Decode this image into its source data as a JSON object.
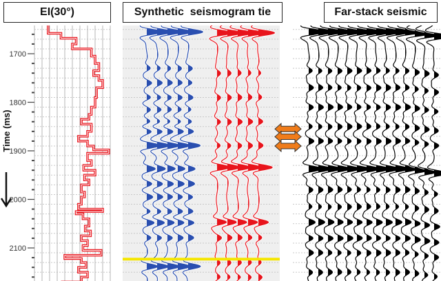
{
  "chart_data": {
    "type": "line",
    "panels": [
      {
        "title": "EI(30°)",
        "type": "step-log",
        "color": "#e8141c",
        "log": [
          [
            1650,
            0.18
          ],
          [
            1658,
            0.35
          ],
          [
            1668,
            0.55
          ],
          [
            1680,
            0.5
          ],
          [
            1690,
            0.75
          ],
          [
            1705,
            0.8
          ],
          [
            1720,
            0.85
          ],
          [
            1735,
            0.78
          ],
          [
            1745,
            0.85
          ],
          [
            1755,
            0.9
          ],
          [
            1770,
            0.82
          ],
          [
            1790,
            0.8
          ],
          [
            1810,
            0.75
          ],
          [
            1825,
            0.72
          ],
          [
            1835,
            0.62
          ],
          [
            1845,
            0.75
          ],
          [
            1860,
            0.7
          ],
          [
            1870,
            0.58
          ],
          [
            1880,
            0.7
          ],
          [
            1890,
            0.78
          ],
          [
            1898,
            0.98
          ],
          [
            1905,
            0.7
          ],
          [
            1920,
            0.75
          ],
          [
            1930,
            0.65
          ],
          [
            1940,
            0.8
          ],
          [
            1950,
            0.66
          ],
          [
            1960,
            0.72
          ],
          [
            1970,
            0.62
          ],
          [
            1985,
            0.66
          ],
          [
            1995,
            0.62
          ],
          [
            2010,
            0.58
          ],
          [
            2020,
            0.9
          ],
          [
            2025,
            0.55
          ],
          [
            2030,
            0.64
          ],
          [
            2040,
            0.72
          ],
          [
            2055,
            0.67
          ],
          [
            2065,
            0.74
          ],
          [
            2075,
            0.62
          ],
          [
            2085,
            0.7
          ],
          [
            2095,
            0.64
          ],
          [
            2105,
            0.88
          ],
          [
            2115,
            0.4
          ],
          [
            2122,
            0.62
          ],
          [
            2130,
            0.68
          ],
          [
            2140,
            0.58
          ],
          [
            2150,
            0.7
          ],
          [
            2160,
            0.62
          ],
          [
            2170,
            0.35
          ]
        ]
      },
      {
        "title": "Synthetic  seismogram tie",
        "type": "wiggle",
        "series": [
          {
            "name": "synthetic-blue",
            "color": "#2a4fb0",
            "traces": 5,
            "events": [
              [
                1655,
                1.6
              ],
              [
                1730,
                0.4
              ],
              [
                1760,
                0.45
              ],
              [
                1790,
                0.45
              ],
              [
                1815,
                0.35
              ],
              [
                1840,
                0.4
              ],
              [
                1860,
                0.55
              ],
              [
                1889,
                1.3
              ],
              [
                1937,
                0.8
              ],
              [
                1968,
                0.6
              ],
              [
                1995,
                0.55
              ],
              [
                2025,
                0.45
              ],
              [
                2048,
                0.7
              ],
              [
                2079,
                0.5
              ],
              [
                2138,
                1.2
              ]
            ]
          },
          {
            "name": "synthetic-red",
            "color": "#e8141c",
            "traces": 5,
            "events": [
              [
                1657,
                1.6
              ],
              [
                1740,
                0.3
              ],
              [
                1790,
                0.35
              ],
              [
                1840,
                0.4
              ],
              [
                1889,
                0.4
              ],
              [
                1934,
                1.4
              ],
              [
                2047,
                1.0
              ],
              [
                2079,
                0.4
              ],
              [
                2130,
                0.3
              ],
              [
                2160,
                0.35
              ]
            ]
          }
        ]
      },
      {
        "title": "Far-stack seismic",
        "type": "wiggle",
        "series": [
          {
            "name": "far-stack",
            "color": "#000000",
            "traces": 14,
            "events": [
              [
                1655,
                2.2
              ],
              [
                1735,
                0.5
              ],
              [
                1770,
                0.5
              ],
              [
                1810,
                0.55
              ],
              [
                1850,
                0.5
              ],
              [
                1880,
                0.55
              ],
              [
                1937,
                1.6
              ],
              [
                1980,
                0.5
              ],
              [
                2015,
                0.45
              ],
              [
                2047,
                0.7
              ],
              [
                2080,
                0.6
              ],
              [
                2110,
                0.5
              ],
              [
                2150,
                0.45
              ]
            ]
          }
        ]
      }
    ],
    "ylabel": "Time (ms)",
    "yticks": [
      1700,
      1800,
      1900,
      2000,
      2100
    ],
    "ylim": [
      1650,
      2170
    ],
    "tie_markers_ms": [
      1855,
      1871,
      1890
    ],
    "highlight_line_ms": [
      2123
    ],
    "highlight_color": "#f5e600",
    "marker_color": "#f07c1a",
    "grid": true
  }
}
